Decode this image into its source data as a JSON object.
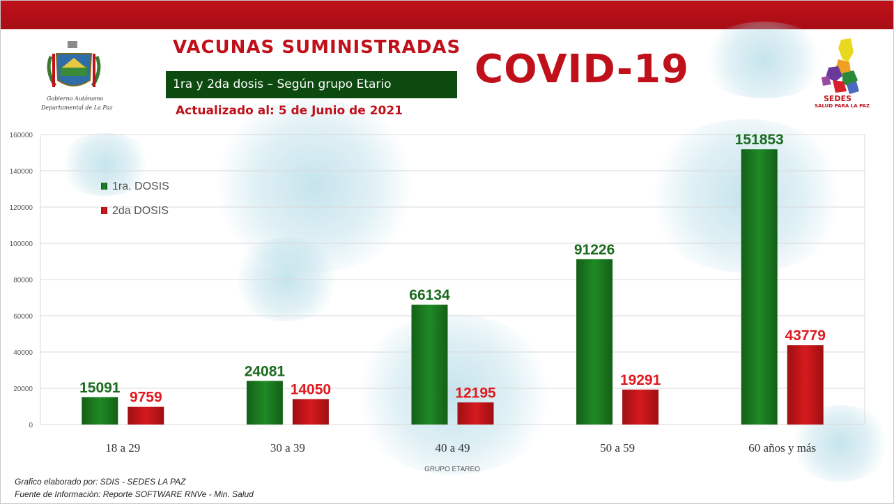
{
  "header": {
    "title": "VACUNAS  SUMINISTRADAS",
    "subtitle": "1ra y 2da dosis – Según grupo Etario",
    "updated": "Actualizado al: 5 de Junio de 2021",
    "banner": "COVID-19"
  },
  "logos": {
    "gov_line1": "Gobierno Autónomo",
    "gov_line2": "Departamental de La Paz",
    "sedes_name": "SEDES",
    "sedes_tagline": "SALUD PARA LA PAZ"
  },
  "colors": {
    "accent": "#c0101a",
    "first_dose": "#1f8a24",
    "second_dose": "#d61a1e",
    "subtitle_bg": "#0d4a10"
  },
  "chart_data": {
    "type": "bar",
    "categories": [
      "18 a 29",
      "30 a 39",
      "40 a 49",
      "50 a 59",
      "60 años y más"
    ],
    "series": [
      {
        "name": "1ra. DOSIS",
        "values": [
          15091,
          24081,
          66134,
          91226,
          151853
        ]
      },
      {
        "name": "2da DOSIS",
        "values": [
          9759,
          14050,
          12195,
          19291,
          43779
        ]
      }
    ],
    "xlabel": "GRUPO ETAREO",
    "ylabel": "",
    "ylim": [
      0,
      160000
    ],
    "yticks": [
      "0",
      "20000",
      "40000",
      "60000",
      "80000",
      "100000",
      "120000",
      "140000",
      "160000"
    ],
    "grid": true,
    "legend_position": "left"
  },
  "footer": {
    "line1": "Grafico elaborado por: SDIS - SEDES LA PAZ",
    "line2": "Fuente de Informaciòn: Reporte SOFTWARE RNVe - Min. Salud"
  }
}
